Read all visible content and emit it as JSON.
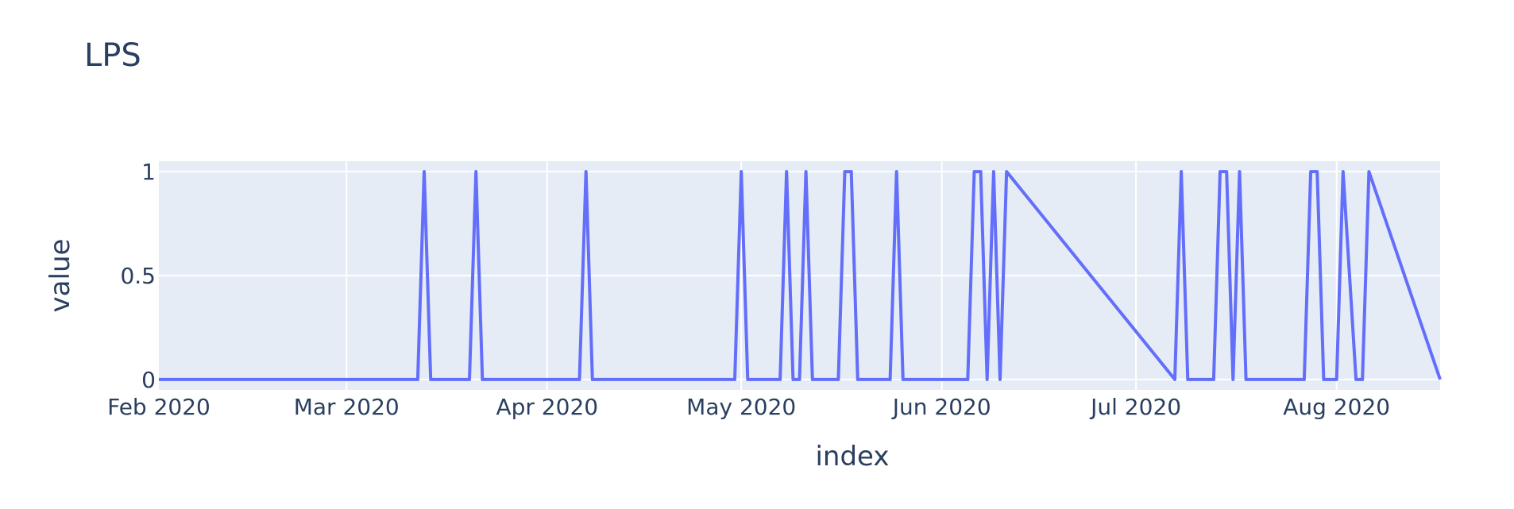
{
  "chart_data": {
    "type": "line",
    "title": "LPS",
    "xlabel": "index",
    "ylabel": "value",
    "xlim": [
      "2020-02-01",
      "2020-08-17"
    ],
    "ylim": [
      -0.05,
      1.05
    ],
    "x_ticks": [
      {
        "label": "Feb 2020",
        "date": "2020-02-01"
      },
      {
        "label": "Mar 2020",
        "date": "2020-03-01"
      },
      {
        "label": "Apr 2020",
        "date": "2020-04-01"
      },
      {
        "label": "May 2020",
        "date": "2020-05-01"
      },
      {
        "label": "Jun 2020",
        "date": "2020-06-01"
      },
      {
        "label": "Jul 2020",
        "date": "2020-07-01"
      },
      {
        "label": "Aug 2020",
        "date": "2020-08-01"
      }
    ],
    "y_ticks": [
      {
        "label": "0",
        "value": 0
      },
      {
        "label": "0.5",
        "value": 0.5
      },
      {
        "label": "1",
        "value": 1
      }
    ],
    "grid": true,
    "legend": "none",
    "series": [
      {
        "color": "#636efa",
        "x": [
          "2020-02-01",
          "2020-03-12",
          "2020-03-13",
          "2020-03-14",
          "2020-03-20",
          "2020-03-21",
          "2020-03-22",
          "2020-04-06",
          "2020-04-07",
          "2020-04-08",
          "2020-04-30",
          "2020-05-01",
          "2020-05-02",
          "2020-05-07",
          "2020-05-08",
          "2020-05-09",
          "2020-05-10",
          "2020-05-11",
          "2020-05-12",
          "2020-05-16",
          "2020-05-17",
          "2020-05-18",
          "2020-05-19",
          "2020-05-24",
          "2020-05-25",
          "2020-05-26",
          "2020-06-05",
          "2020-06-06",
          "2020-06-07",
          "2020-06-08",
          "2020-06-09",
          "2020-06-10",
          "2020-06-11",
          "2020-07-07",
          "2020-07-08",
          "2020-07-09",
          "2020-07-13",
          "2020-07-14",
          "2020-07-15",
          "2020-07-16",
          "2020-07-17",
          "2020-07-18",
          "2020-07-27",
          "2020-07-28",
          "2020-07-29",
          "2020-07-30",
          "2020-08-01",
          "2020-08-02",
          "2020-08-04",
          "2020-08-05",
          "2020-08-06",
          "2020-08-17"
        ],
        "y": [
          0,
          0,
          1,
          0,
          0,
          1,
          0,
          0,
          1,
          0,
          0,
          1,
          0,
          0,
          1,
          0,
          0,
          1,
          0,
          0,
          1,
          1,
          0,
          0,
          1,
          0,
          0,
          1,
          1,
          0,
          1,
          0,
          1,
          0,
          1,
          0,
          0,
          1,
          1,
          0,
          1,
          0,
          0,
          1,
          1,
          0,
          0,
          1,
          0,
          0,
          1,
          0
        ]
      }
    ]
  }
}
